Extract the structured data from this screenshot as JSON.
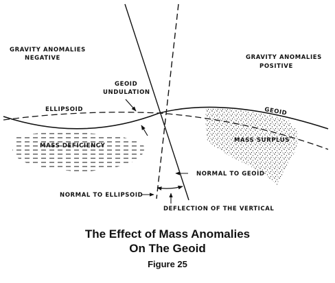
{
  "labels": {
    "neg_line1": "GRAVITY ANOMALIES",
    "neg_line2": "NEGATIVE",
    "pos_line1": "GRAVITY ANOMALIES",
    "pos_line2": "POSITIVE",
    "undulation_line1": "GEOID",
    "undulation_line2": "UNDULATION",
    "ellipsoid": "ELLIPSOID",
    "geoid": "GEOID",
    "mass_deficiency": "MASS DEFICIENCY",
    "mass_surplus": "MASS SURPLUS",
    "normal_to_geoid": "NORMAL TO GEOID",
    "normal_to_ellipsoid": "NORMAL TO ELLIPSOID",
    "deflection": "DEFLECTION OF THE VERTICAL"
  },
  "caption": {
    "line1": "The Effect of Mass Anomalies",
    "line2": "On The Geoid",
    "figure": "Figure 25"
  }
}
